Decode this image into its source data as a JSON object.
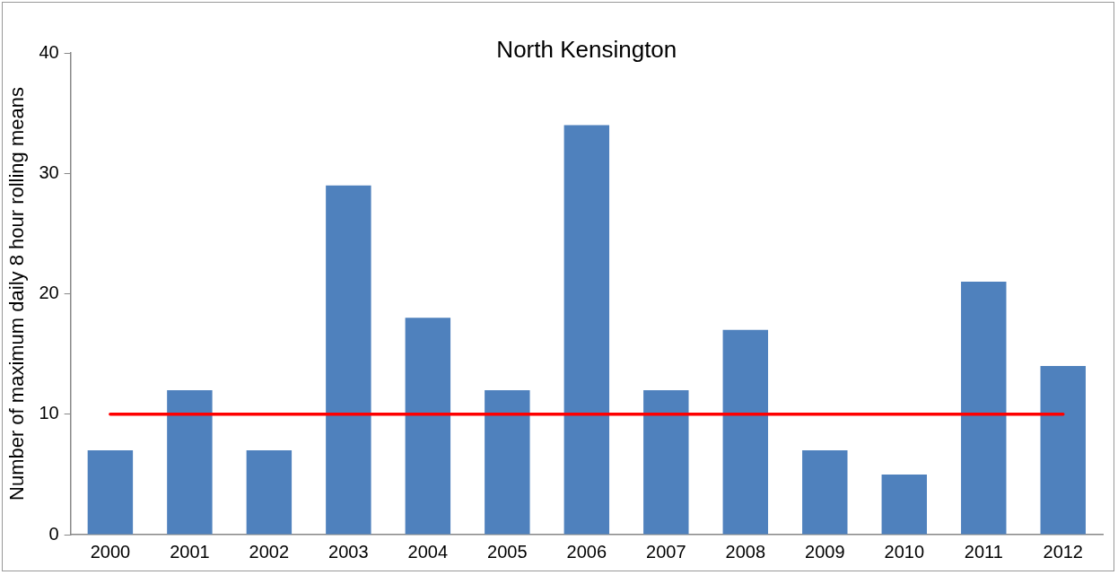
{
  "chart_data": {
    "type": "bar",
    "title": "North Kensington",
    "ylabel": "Number of maximum daily 8 hour rolling means",
    "categories": [
      "2000",
      "2001",
      "2002",
      "2003",
      "2004",
      "2005",
      "2006",
      "2007",
      "2008",
      "2009",
      "2010",
      "2011",
      "2012"
    ],
    "values": [
      7,
      12,
      7,
      29,
      18,
      12,
      34,
      12,
      17,
      7,
      5,
      21,
      14
    ],
    "color": "#4f81bd",
    "ylim": [
      0,
      40
    ],
    "yticks": [
      0,
      10,
      20,
      30,
      40
    ],
    "grid": false,
    "legend": false,
    "ref_lines": [
      {
        "axis": "y",
        "value": 10,
        "color": "#ff0000"
      }
    ]
  }
}
